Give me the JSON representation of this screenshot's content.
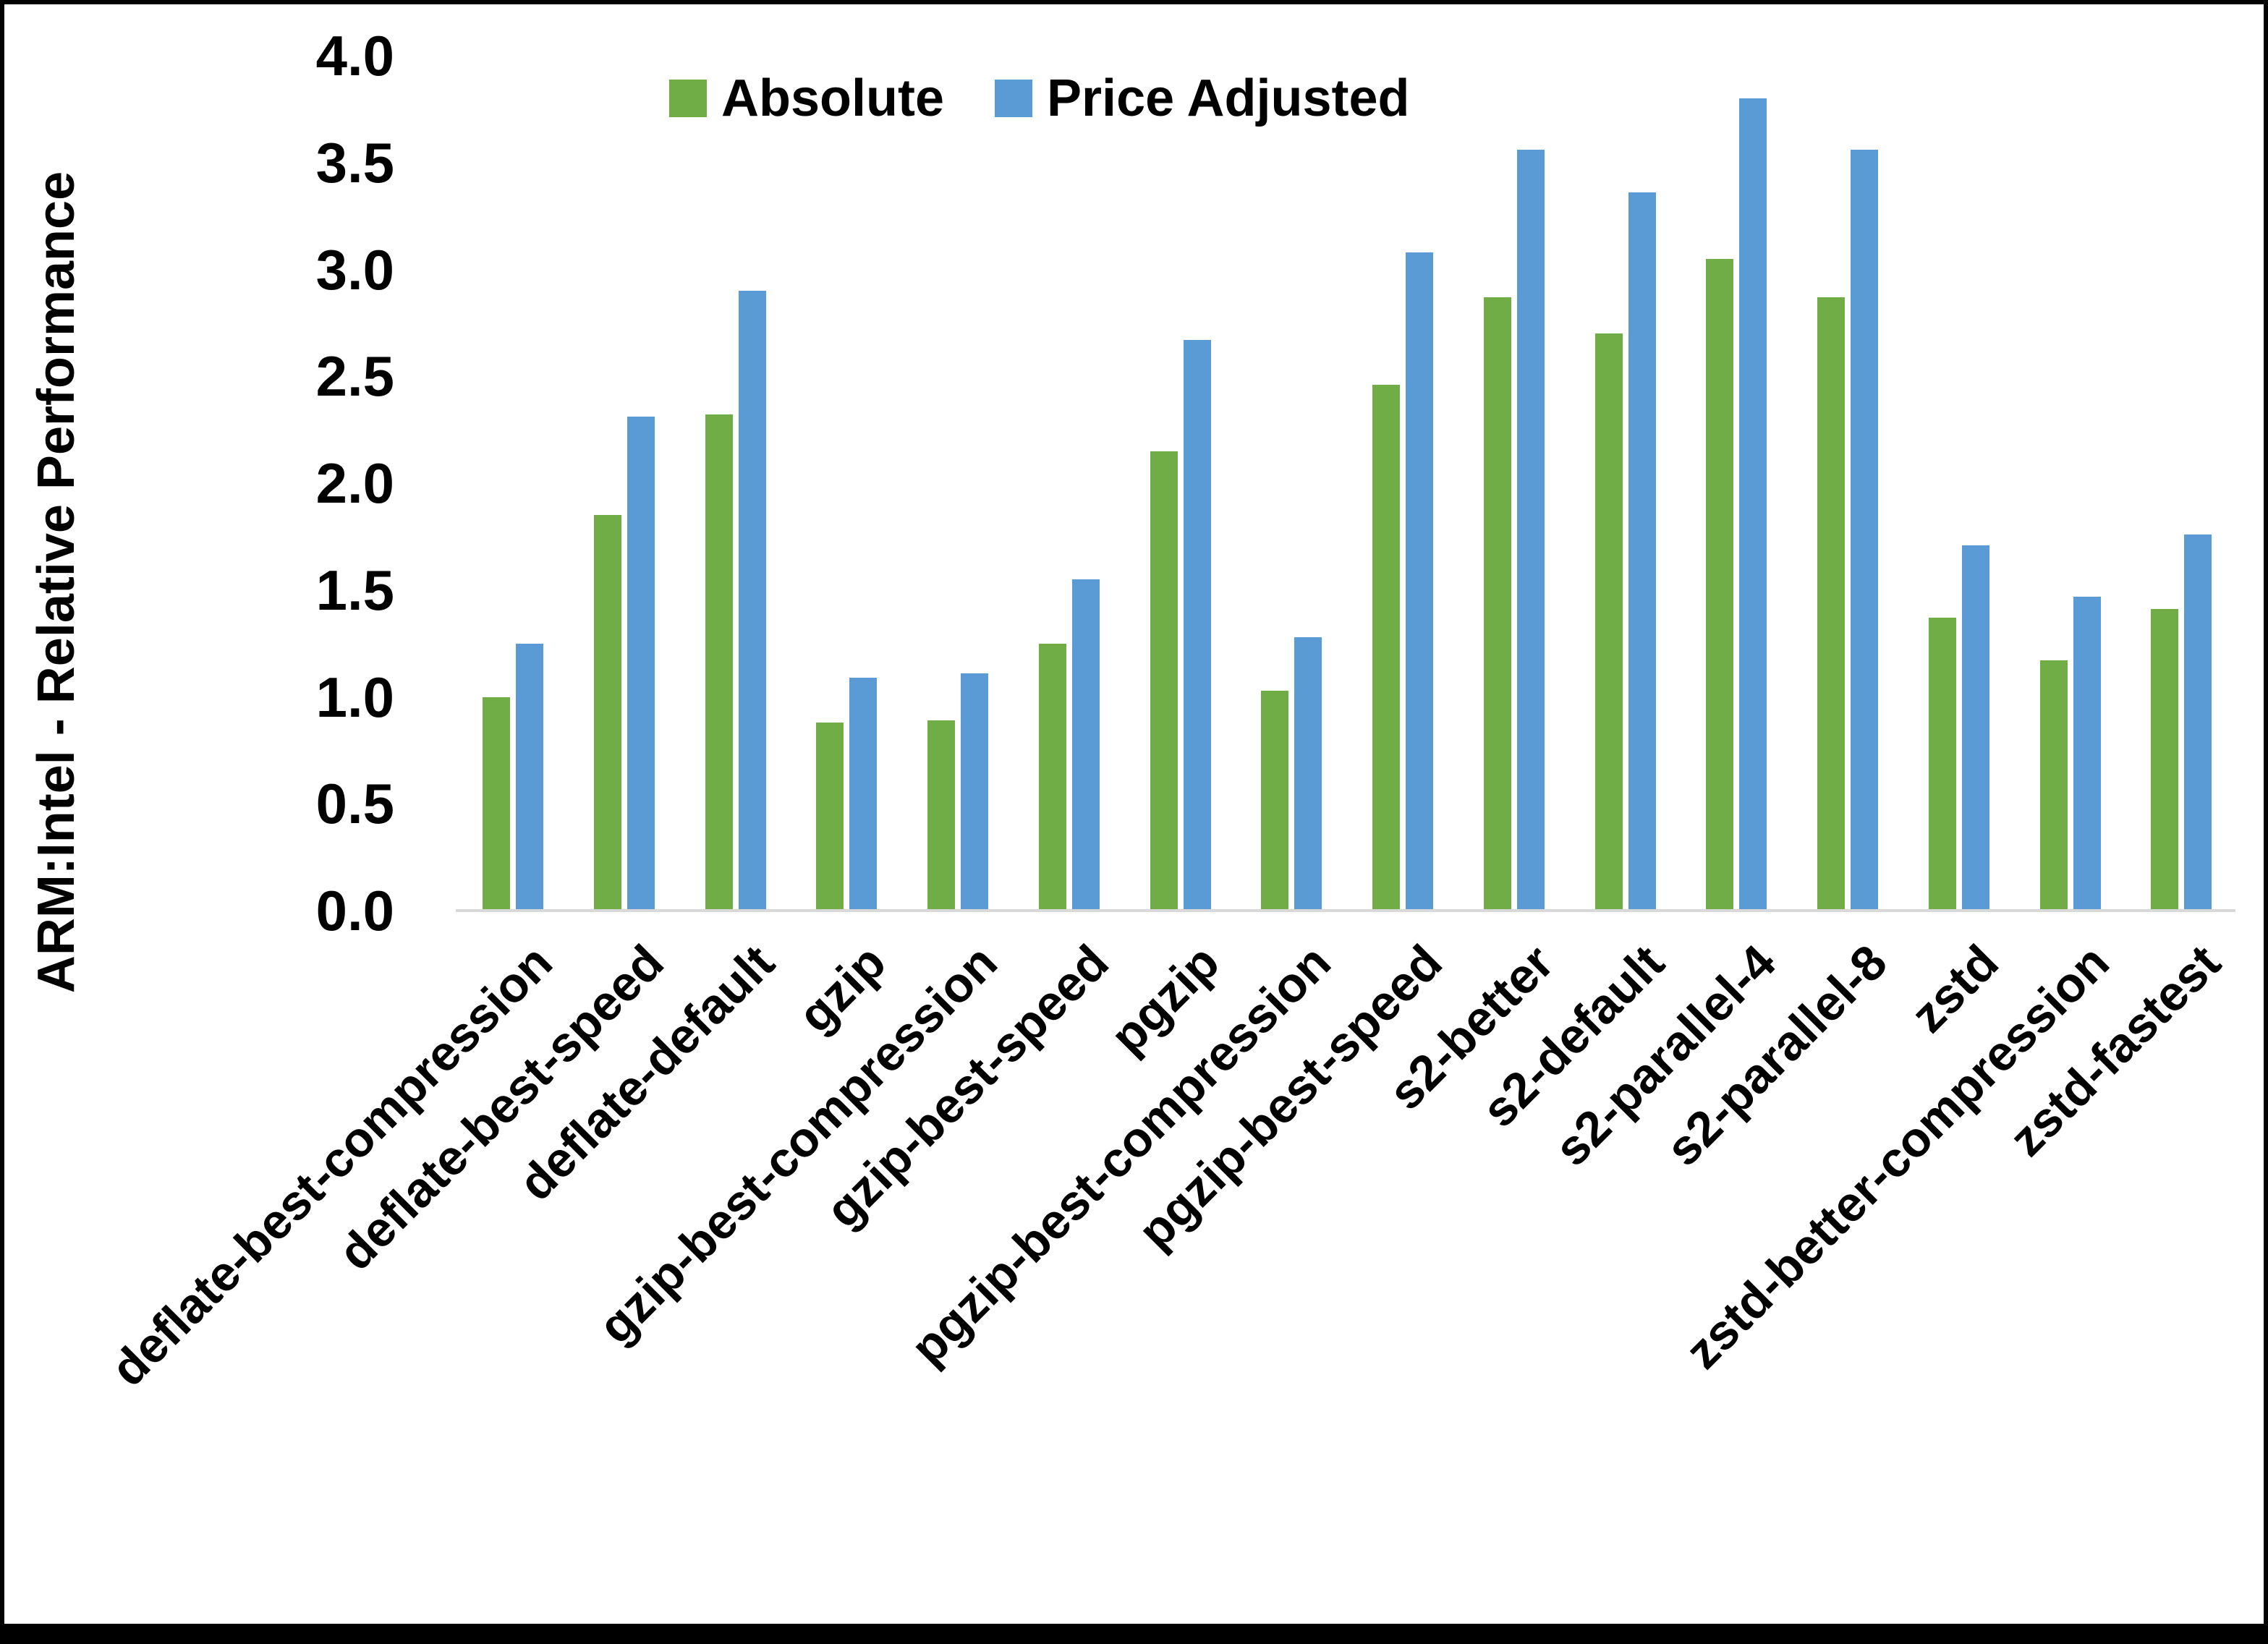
{
  "figure": {
    "y_axis_title": "ARM:Intel - Relative Performance"
  },
  "legend": {
    "absolute_label": "Absolute",
    "price_adjusted_label": "Price Adjusted"
  },
  "colors": {
    "absolute": "#70AD47",
    "price_adjusted": "#5B9BD5",
    "axis_line": "#D9D9D9",
    "text": "#000000",
    "frame": "#000000"
  },
  "chart_data": {
    "type": "bar",
    "title": "",
    "xlabel": "",
    "ylabel": "ARM:Intel - Relative Performance",
    "ylim": [
      0,
      4.0
    ],
    "ytick_labels": [
      "0.0",
      "0.5",
      "1.0",
      "1.5",
      "2.0",
      "2.5",
      "3.0",
      "3.5",
      "4.0"
    ],
    "grid": false,
    "legend_position": "top-center",
    "categories": [
      "deflate-best-compression",
      "deflate-best-speed",
      "deflate-default",
      "gzip",
      "gzip-best-compression",
      "gzip-best-speed",
      "pgzip",
      "pgzip-best-compression",
      "pgzip-best-speed",
      "s2-better",
      "s2-default",
      "s2-parallel-4",
      "s2-parallel-8",
      "zstd",
      "zstd-better-compression",
      "zstd-fastest"
    ],
    "series": [
      {
        "name": "Absolute",
        "color": "#70AD47",
        "values": [
          1.0,
          1.85,
          2.32,
          0.88,
          0.89,
          1.25,
          2.15,
          1.03,
          2.46,
          2.87,
          2.7,
          3.05,
          2.87,
          1.37,
          1.17,
          1.41
        ]
      },
      {
        "name": "Price Adjusted",
        "color": "#5B9BD5",
        "values": [
          1.25,
          2.31,
          2.9,
          1.09,
          1.11,
          1.55,
          2.67,
          1.28,
          3.08,
          3.56,
          3.36,
          3.8,
          3.56,
          1.71,
          1.47,
          1.76
        ]
      }
    ]
  }
}
